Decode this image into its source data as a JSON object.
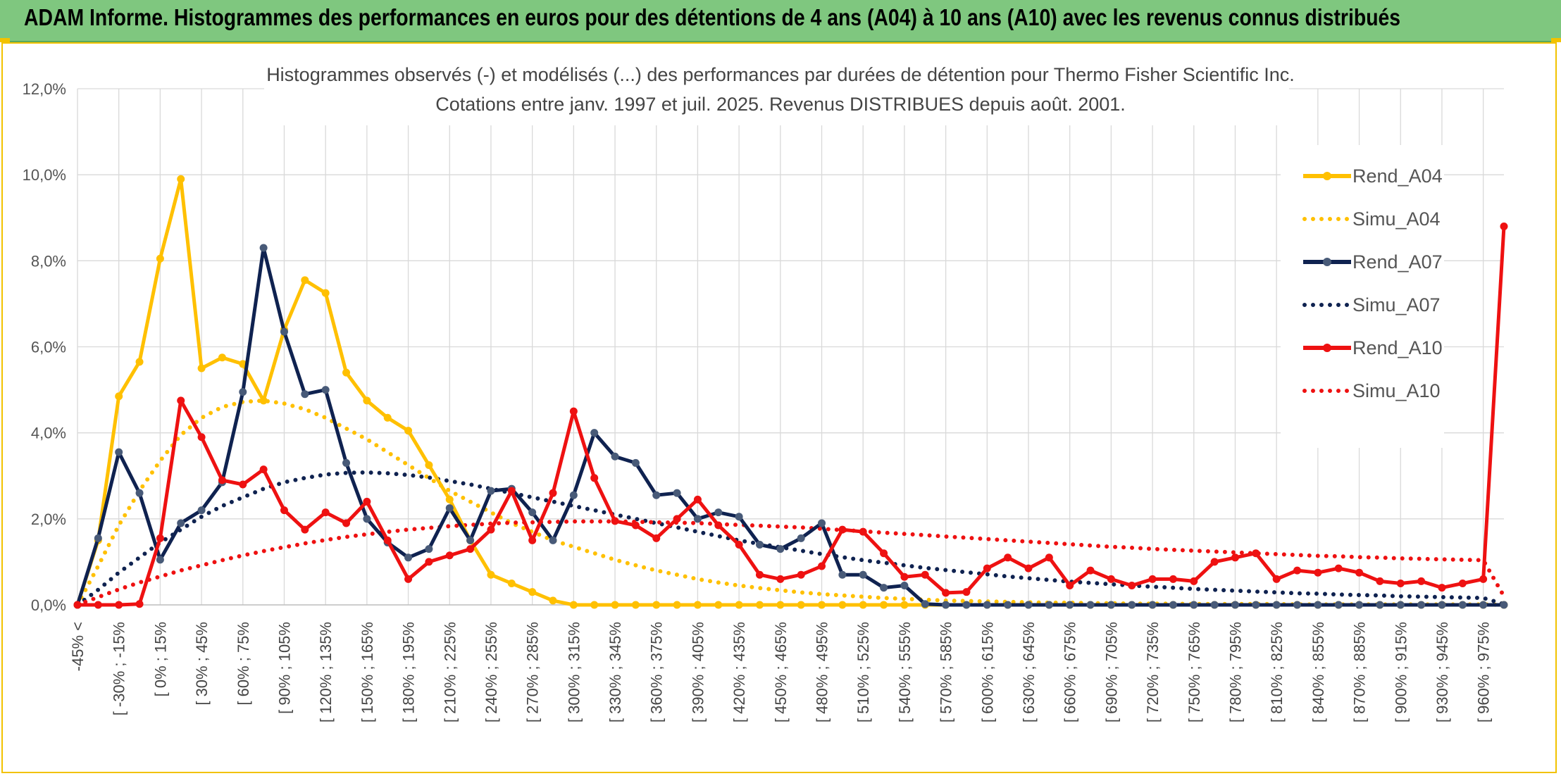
{
  "banner": {
    "title": "ADAM Informe. Histogrammes des performances en euros pour des détentions de 4 ans (A04) à 10 ans (A10) avec les revenus connus distribués"
  },
  "colors": {
    "banner_bg": "#7fc77f",
    "A04": "#ffc000",
    "A07": "#0f2250",
    "A10": "#ee1111",
    "frame": "#f2c200"
  },
  "chart_data": {
    "type": "line",
    "title": "Histogrammes observés (-) et modélisés (...) des performances par durées de détention pour Thermo Fisher Scientific Inc.",
    "subtitle": "Cotations entre janv. 1997 et juil. 2025. Revenus DISTRIBUES depuis août. 2001.",
    "xlabel": "",
    "ylabel": "",
    "ylim": [
      0,
      12
    ],
    "yticks": [
      "0,0%",
      "2,0%",
      "4,0%",
      "6,0%",
      "8,0%",
      "10,0%",
      "12,0%"
    ],
    "grid": true,
    "legend_position": "right",
    "x_labels": [
      "-45% <",
      "[ -30% ; -15%",
      "[ 0% ; 15%",
      "[ 30% ; 45%",
      "[ 60% ; 75%",
      "[ 90% ; 105%",
      "[ 120% ; 135%",
      "[ 150% ; 165%",
      "[ 180% ; 195%",
      "[ 210% ; 225%",
      "[ 240% ; 255%",
      "[ 270% ; 285%",
      "[ 300% ; 315%",
      "[ 330% ; 345%",
      "[ 360% ; 375%",
      "[ 390% ; 405%",
      "[ 420% ; 435%",
      "[ 450% ; 465%",
      "[ 480% ; 495%",
      "[ 510% ; 525%",
      "[ 540% ; 555%",
      "[ 570% ; 585%",
      "[ 600% ; 615%",
      "[ 630% ; 645%",
      "[ 660% ; 675%",
      "[ 690% ; 705%",
      "[ 720% ; 735%",
      "[ 750% ; 765%",
      "[ 780% ; 795%",
      "[ 810% ; 825%",
      "[ 840% ; 855%",
      "[ 870% ; 885%",
      "[ 900% ; 915%",
      "[ 930% ; 945%",
      "[ 960% ; 975%"
    ],
    "series": [
      {
        "name": "Rend_A04",
        "style": "solid",
        "values": [
          0,
          1.5,
          4.85,
          5.65,
          8.05,
          9.9,
          5.5,
          5.75,
          5.6,
          4.75,
          6.4,
          7.55,
          7.25,
          5.4,
          4.75,
          4.35,
          4.05,
          3.25,
          2.45,
          1.5,
          0.7,
          0.5,
          0.3,
          0.1,
          0,
          0,
          0,
          0,
          0,
          0,
          0,
          0,
          0,
          0,
          0,
          0,
          0,
          0,
          0,
          0,
          0,
          0,
          0,
          0,
          0,
          0,
          0,
          0,
          0,
          0,
          0,
          0,
          0,
          0,
          0,
          0,
          0,
          0,
          0,
          0,
          0,
          0,
          0,
          0,
          0,
          0,
          0,
          0,
          0,
          0
        ]
      },
      {
        "name": "Simu_A04",
        "style": "dotted",
        "values": [
          0,
          0.9,
          1.85,
          2.65,
          3.35,
          3.95,
          4.35,
          4.6,
          4.72,
          4.75,
          4.68,
          4.55,
          4.35,
          4.1,
          3.85,
          3.55,
          3.25,
          2.95,
          2.65,
          2.4,
          2.15,
          1.9,
          1.7,
          1.5,
          1.35,
          1.2,
          1.05,
          0.92,
          0.8,
          0.7,
          0.6,
          0.52,
          0.45,
          0.39,
          0.34,
          0.29,
          0.25,
          0.22,
          0.19,
          0.16,
          0.14,
          0.12,
          0.1,
          0.09,
          0.08,
          0.07,
          0.06,
          0.05,
          0.05,
          0.04,
          0.04,
          0.03,
          0.03,
          0.03,
          0.02,
          0.02,
          0.02,
          0.02,
          0.02,
          0.01,
          0.01,
          0.01,
          0.01,
          0.01,
          0.01,
          0.01,
          0.01,
          0.01,
          0.01,
          0
        ]
      },
      {
        "name": "Rend_A07",
        "style": "solid",
        "values": [
          0,
          1.55,
          3.55,
          2.6,
          1.05,
          1.9,
          2.2,
          2.85,
          4.95,
          8.3,
          6.35,
          4.9,
          5.0,
          3.3,
          2.0,
          1.45,
          1.1,
          1.3,
          2.25,
          1.5,
          2.65,
          2.7,
          2.15,
          1.5,
          2.55,
          4.0,
          3.45,
          3.3,
          2.55,
          2.6,
          2.0,
          2.15,
          2.05,
          1.4,
          1.3,
          1.55,
          1.9,
          0.7,
          0.7,
          0.4,
          0.45,
          0.02,
          0,
          0,
          0,
          0,
          0,
          0,
          0,
          0,
          0,
          0,
          0,
          0,
          0,
          0,
          0,
          0,
          0,
          0,
          0,
          0,
          0,
          0,
          0,
          0,
          0,
          0,
          0,
          0
        ]
      },
      {
        "name": "Simu_A07",
        "style": "dotted",
        "values": [
          0,
          0.35,
          0.75,
          1.1,
          1.45,
          1.75,
          2.05,
          2.3,
          2.5,
          2.7,
          2.85,
          2.95,
          3.03,
          3.07,
          3.08,
          3.06,
          3.02,
          2.96,
          2.88,
          2.8,
          2.7,
          2.6,
          2.5,
          2.4,
          2.3,
          2.2,
          2.1,
          2.0,
          1.9,
          1.8,
          1.7,
          1.6,
          1.5,
          1.42,
          1.34,
          1.26,
          1.18,
          1.11,
          1.04,
          0.98,
          0.92,
          0.86,
          0.81,
          0.76,
          0.71,
          0.66,
          0.62,
          0.58,
          0.54,
          0.51,
          0.48,
          0.45,
          0.42,
          0.4,
          0.37,
          0.35,
          0.33,
          0.31,
          0.29,
          0.27,
          0.26,
          0.24,
          0.23,
          0.22,
          0.2,
          0.19,
          0.18,
          0.17,
          0.16,
          0.02
        ]
      },
      {
        "name": "Rend_A10",
        "style": "solid",
        "values": [
          0,
          0,
          0,
          0.02,
          1.55,
          4.75,
          3.9,
          2.9,
          2.8,
          3.15,
          2.2,
          1.75,
          2.15,
          1.9,
          2.4,
          1.5,
          0.6,
          1.0,
          1.15,
          1.3,
          1.75,
          2.65,
          1.5,
          2.6,
          4.5,
          2.95,
          1.95,
          1.85,
          1.55,
          2.0,
          2.45,
          1.85,
          1.4,
          0.7,
          0.6,
          0.7,
          0.9,
          1.75,
          1.7,
          1.2,
          0.65,
          0.7,
          0.28,
          0.3,
          0.85,
          1.1,
          0.85,
          1.1,
          0.45,
          0.8,
          0.6,
          0.45,
          0.6,
          0.6,
          0.55,
          1.0,
          1.1,
          1.2,
          0.6,
          0.8,
          0.75,
          0.85,
          0.75,
          0.55,
          0.5,
          0.55,
          0.4,
          0.5,
          0.6,
          8.8
        ]
      },
      {
        "name": "Simu_A10",
        "style": "dotted",
        "values": [
          0,
          0.18,
          0.36,
          0.52,
          0.66,
          0.8,
          0.92,
          1.04,
          1.15,
          1.25,
          1.34,
          1.43,
          1.51,
          1.58,
          1.64,
          1.7,
          1.75,
          1.79,
          1.83,
          1.86,
          1.89,
          1.91,
          1.92,
          1.93,
          1.94,
          1.94,
          1.94,
          1.93,
          1.92,
          1.91,
          1.9,
          1.88,
          1.86,
          1.84,
          1.82,
          1.8,
          1.77,
          1.74,
          1.71,
          1.68,
          1.65,
          1.62,
          1.59,
          1.56,
          1.53,
          1.5,
          1.47,
          1.44,
          1.41,
          1.38,
          1.35,
          1.33,
          1.3,
          1.28,
          1.26,
          1.24,
          1.22,
          1.2,
          1.18,
          1.16,
          1.14,
          1.13,
          1.11,
          1.1,
          1.08,
          1.07,
          1.06,
          1.05,
          1.04,
          0.2
        ]
      }
    ]
  }
}
